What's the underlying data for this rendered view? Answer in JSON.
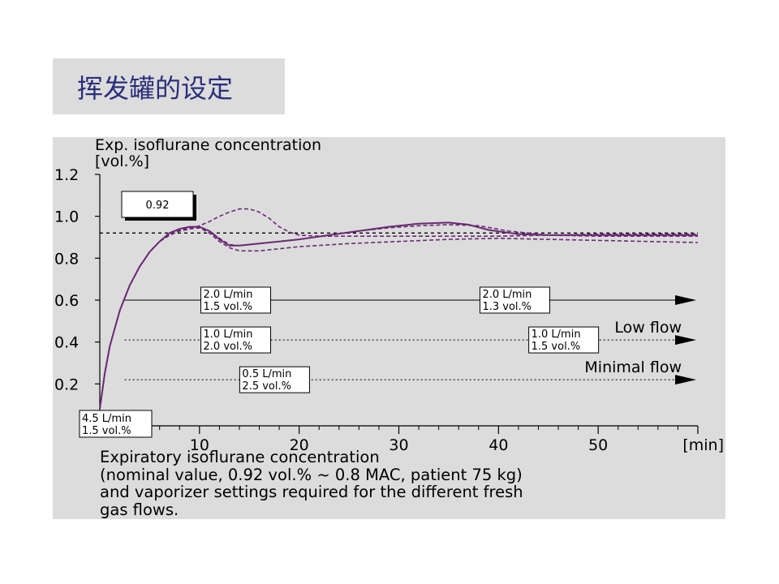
{
  "slide": {
    "title": "挥发罐的设定"
  },
  "caption": {
    "lines": [
      "Expiratory isoflurane concentration",
      "(nominal value, 0.92 vol.% ~ 0.8 MAC, patient 75 kg)",
      "and vaporizer settings required for the different fresh",
      "gas flows."
    ]
  },
  "colors": {
    "curve": "#6a2a74",
    "panel": "#dcdcdc"
  },
  "chart_data": {
    "type": "line",
    "ylabel_lines": [
      "Exp. isoflurane concentration",
      "[vol.%]"
    ],
    "xlabel": "[min]",
    "xlim": [
      0,
      60
    ],
    "ylim": [
      0,
      1.2
    ],
    "xticks": [
      10,
      20,
      30,
      40,
      50
    ],
    "yticks": [
      0.2,
      0.4,
      0.6,
      0.8,
      1.0,
      1.2
    ],
    "ytick_labels": [
      "0.2",
      "0.4",
      "0.6",
      "0.8",
      "1.0",
      "1.2"
    ],
    "nominal_value": 0.92,
    "nominal_label": "0.92",
    "series": [
      {
        "style": "solid",
        "x": [
          0,
          0.5,
          1,
          2,
          3,
          4,
          5,
          6,
          7,
          8,
          9,
          10,
          11,
          12,
          13,
          14,
          16,
          18,
          20,
          23,
          26,
          29,
          32,
          35,
          37,
          39,
          42,
          45,
          50,
          55,
          60
        ],
        "y": [
          0.08,
          0.25,
          0.38,
          0.55,
          0.67,
          0.76,
          0.83,
          0.88,
          0.92,
          0.94,
          0.95,
          0.95,
          0.93,
          0.89,
          0.86,
          0.86,
          0.87,
          0.88,
          0.89,
          0.91,
          0.93,
          0.95,
          0.965,
          0.97,
          0.96,
          0.935,
          0.915,
          0.91,
          0.91,
          0.91,
          0.91
        ]
      },
      {
        "style": "dashed",
        "x": [
          0,
          0.5,
          1,
          2,
          3,
          4,
          5,
          6,
          7,
          8,
          9,
          10,
          11,
          12,
          13,
          14,
          15,
          16,
          17,
          18,
          19,
          20,
          22,
          25,
          30,
          35,
          40,
          45,
          50,
          55,
          60
        ],
        "y": [
          0.08,
          0.25,
          0.38,
          0.55,
          0.67,
          0.76,
          0.83,
          0.88,
          0.91,
          0.93,
          0.94,
          0.955,
          0.975,
          1.0,
          1.02,
          1.035,
          1.035,
          1.02,
          0.99,
          0.95,
          0.925,
          0.91,
          0.905,
          0.905,
          0.905,
          0.905,
          0.905,
          0.91,
          0.915,
          0.915,
          0.915
        ]
      },
      {
        "style": "dashed",
        "x": [
          0,
          0.5,
          1,
          2,
          3,
          4,
          5,
          6,
          7,
          8,
          9,
          10,
          11,
          12,
          13,
          14,
          16,
          18,
          20,
          25,
          30,
          35,
          40,
          45,
          50,
          55,
          60
        ],
        "y": [
          0.08,
          0.25,
          0.38,
          0.55,
          0.67,
          0.76,
          0.83,
          0.88,
          0.91,
          0.93,
          0.94,
          0.945,
          0.92,
          0.88,
          0.85,
          0.835,
          0.835,
          0.845,
          0.855,
          0.87,
          0.88,
          0.89,
          0.895,
          0.89,
          0.885,
          0.88,
          0.875
        ]
      },
      {
        "style": "dashed",
        "x": [
          0,
          0.5,
          1,
          2,
          3,
          4,
          5,
          6,
          7,
          8,
          9,
          10,
          11,
          12,
          13,
          14,
          16,
          18,
          20,
          23,
          26,
          29,
          32,
          35,
          38,
          41,
          45,
          50,
          55,
          60
        ],
        "y": [
          0.08,
          0.25,
          0.38,
          0.55,
          0.67,
          0.76,
          0.83,
          0.88,
          0.91,
          0.935,
          0.945,
          0.95,
          0.93,
          0.895,
          0.865,
          0.86,
          0.87,
          0.88,
          0.89,
          0.91,
          0.93,
          0.945,
          0.955,
          0.96,
          0.955,
          0.93,
          0.91,
          0.905,
          0.905,
          0.905
        ]
      }
    ],
    "flow_lines": [
      {
        "name": "",
        "y": 0.6,
        "style": "solid",
        "boxes": [
          {
            "x": 10.3,
            "lines": [
              "2.0 L/min",
              "1.5 vol.%"
            ]
          },
          {
            "x": 38.3,
            "lines": [
              "2.0 L/min",
              "1.3 vol.%"
            ]
          }
        ]
      },
      {
        "name": "Low flow",
        "y": 0.41,
        "style": "dotted",
        "boxes": [
          {
            "x": 10.3,
            "lines": [
              "1.0 L/min",
              "2.0 vol.%"
            ]
          },
          {
            "x": 43.2,
            "lines": [
              "1.0 L/min",
              "1.5 vol.%"
            ]
          }
        ]
      },
      {
        "name": "Minimal flow",
        "y": 0.22,
        "style": "dotted",
        "boxes": [
          {
            "x": 14.2,
            "lines": [
              "0.5 L/min",
              "2.5 vol.%"
            ]
          }
        ]
      }
    ],
    "start_box": {
      "lines": [
        "4.5 L/min",
        "1.5 vol.%"
      ]
    }
  }
}
